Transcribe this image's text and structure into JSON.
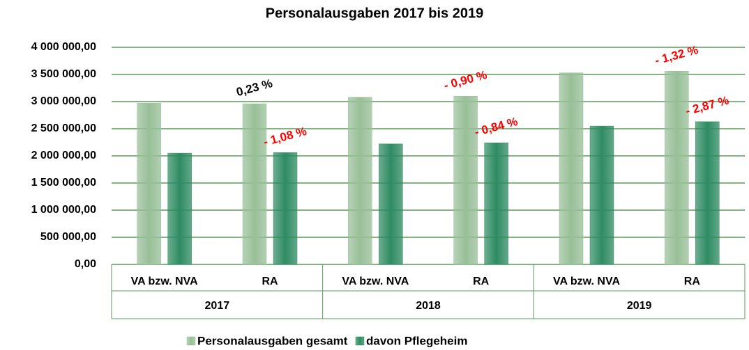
{
  "chart_data": {
    "type": "bar",
    "title": "Personalausgaben 2017 bis 2019",
    "categories": [
      "VA bzw. NVA",
      "RA",
      "VA bzw. NVA",
      "RA",
      "VA bzw. NVA",
      "RA"
    ],
    "groups": [
      "2017",
      "2018",
      "2019"
    ],
    "series": [
      {
        "name": "Personalausgaben gesamt",
        "color": "#98bf98",
        "values": [
          2970000,
          2960000,
          3080000,
          3100000,
          3530000,
          3560000
        ],
        "annotations": [
          null,
          "0,23 %",
          null,
          "- 0,90 %",
          null,
          "- 1,32 %"
        ],
        "annotation_colors": [
          null,
          "#000000",
          null,
          "#ff0000",
          null,
          "#ff0000"
        ]
      },
      {
        "name": "davon Pflegeheim",
        "color": "#2e8b62",
        "values": [
          2050000,
          2060000,
          2220000,
          2240000,
          2550000,
          2630000
        ],
        "annotations": [
          null,
          "- 1,08 %",
          null,
          "- 0,84 %",
          null,
          "- 2,87 %"
        ],
        "annotation_colors": [
          null,
          "#ff0000",
          null,
          "#ff0000",
          null,
          "#ff0000"
        ]
      }
    ],
    "ylim": [
      0,
      4000000
    ],
    "yticks": [
      {
        "value": 0,
        "label": "0,00"
      },
      {
        "value": 500000,
        "label": "500 000,00"
      },
      {
        "value": 1000000,
        "label": "1 000 000,00"
      },
      {
        "value": 1500000,
        "label": "1 500 000,00"
      },
      {
        "value": 2000000,
        "label": "2 000 000,00"
      },
      {
        "value": 2500000,
        "label": "2 500 000,00"
      },
      {
        "value": 3000000,
        "label": "3 000 000,00"
      },
      {
        "value": 3500000,
        "label": "3 500 000,00"
      },
      {
        "value": 4000000,
        "label": "4 000 000,00"
      }
    ],
    "grid": true,
    "legend": "bottom"
  }
}
